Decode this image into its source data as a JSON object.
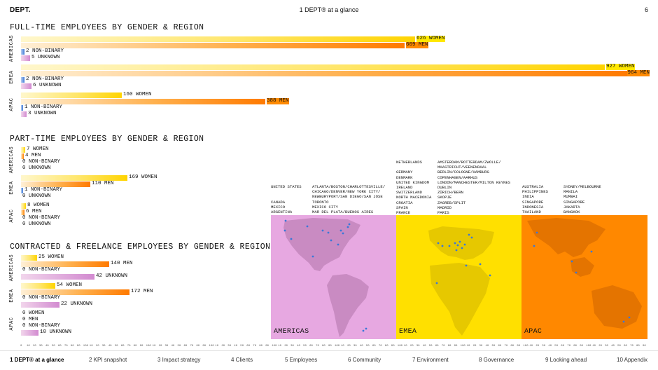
{
  "header": {
    "logo": "DEPT.",
    "title": "1 DEPT® at a glance",
    "page": "6"
  },
  "sections": {
    "fulltime": {
      "title": "FULL-TIME EMPLOYEES BY GENDER & REGION",
      "regions": [
        {
          "name": "AMERICAS",
          "women": "626 WOMEN",
          "men": "609 MEN",
          "nb": "2 NON-BINARY",
          "unk": "5 UNKNOWN"
        },
        {
          "name": "EMEA",
          "women": "927 WOMEN",
          "men": "964 MEN",
          "nb": "2 NON-BINARY",
          "unk": "6 UNKNOWN"
        },
        {
          "name": "APAC",
          "women": "160 WOMEN",
          "men": "388 MEN",
          "nb": "1 NON-BINARY",
          "unk": "3 UNKNOWN"
        }
      ],
      "values": {
        "women": [
          626,
          927,
          160
        ],
        "men": [
          609,
          964,
          388
        ],
        "nb": [
          2,
          2,
          1
        ],
        "unk": [
          5,
          6,
          3
        ]
      }
    },
    "parttime": {
      "title": "PART-TIME EMPLOYEES BY GENDER & REGION",
      "regions": [
        {
          "name": "AMERICAS",
          "women": "7 WOMEN",
          "men": "4 MEN",
          "nb": "0 NON-BINARY",
          "unk": "0 UNKNOWN"
        },
        {
          "name": "EMEA",
          "women": "169 WOMEN",
          "men": "110 MEN",
          "nb": "1 NON-BINARY",
          "unk": "0 UNKNOWN"
        },
        {
          "name": "APAC",
          "women": "8 WOMEN",
          "men": "6 MEN",
          "nb": "0 NON-BINARY",
          "unk": "0 UNKNOWN"
        }
      ],
      "values": {
        "women": [
          7,
          169,
          8
        ],
        "men": [
          4,
          110,
          6
        ],
        "nb": [
          0,
          1,
          0
        ],
        "unk": [
          0,
          0,
          0
        ]
      }
    },
    "contracted": {
      "title": "CONTRACTED & FREELANCE EMPLOYEES BY GENDER & REGION",
      "regions": [
        {
          "name": "AMERICAS",
          "women": "25 WOMEN",
          "men": "140 MEN",
          "nb": "0 NON-BINARY",
          "unk": "42 UNKNOWN"
        },
        {
          "name": "EMEA",
          "women": "54 WOMEN",
          "men": "172 MEN",
          "nb": "0 NON-BINARY",
          "unk": "22 UNKNOWN"
        },
        {
          "name": "APAC",
          "women": "0 WOMEN",
          "men": "0 MEN",
          "nb": "0 NON-BINARY",
          "unk": "10 UNKNOWN"
        }
      ],
      "values": {
        "women": [
          25,
          54,
          0
        ],
        "men": [
          140,
          172,
          0
        ],
        "nb": [
          0,
          0,
          0
        ],
        "unk": [
          42,
          22,
          10
        ]
      }
    }
  },
  "offices": {
    "americas": {
      "countries": [
        "UNITED STATES",
        "",
        "",
        "CANADA",
        "MEXICO",
        "ARGENTINA"
      ],
      "cities": [
        "ATLANTA/BOSTON/CHARLOTTESVILLE/",
        "CHICAGO/DENVER/NEW YORK CITY/",
        "NEWBURYPORT/SAN DIEGO/SAN JOSE",
        "TORONTO",
        "MEXICO CITY",
        "MAR DEL PLATA/BUENOS AIRES"
      ],
      "map_label": "AMERICAS",
      "color": "#e7a8e1"
    },
    "emea": {
      "countries": [
        "NETHERLANDS",
        "",
        "GERMANY",
        "DENMARK",
        "UNITED KINGDOM",
        "IRELAND",
        "SWITZERLAND",
        "NORTH MACEDONIA",
        "CROATIA",
        "SPAIN",
        "FRANCE"
      ],
      "cities": [
        "AMSTERDAM/ROTTERDAM/ZWOLLE/",
        "MAASTRICHT/VEENENDAAL",
        "BERLIN/COLOGNE/HAMBURG",
        "COPENHAGEN/AARHUS",
        "LONDON/MANCHESTER/MILTON KEYNES",
        "DUBLIN",
        "ZÜRICH/BERN",
        "SKOPJE",
        "ZAGREB/SPLIT",
        "MADRID",
        "PARIS"
      ],
      "map_label": "EMEA",
      "color": "#ffe000"
    },
    "apac": {
      "countries": [
        "AUSTRALIA",
        "PHILIPPINES",
        "INDIA",
        "SINGAPORE",
        "INDONESIA",
        "THAILAND"
      ],
      "cities": [
        "SYDNEY/MELBOURNE",
        "MANILA",
        "MUMBAI",
        "SINGAPORE",
        "JAKARTA",
        "BANGKOK"
      ],
      "map_label": "APAC",
      "color": "#ff8800"
    }
  },
  "ruler_labels": [
    "0",
    "10",
    "20",
    "30",
    "40",
    "50",
    "60",
    "70",
    "80",
    "90",
    "100",
    "10",
    "20",
    "30",
    "40",
    "50",
    "60",
    "70",
    "80",
    "90",
    "100",
    "10",
    "20",
    "30",
    "40",
    "50",
    "60",
    "70",
    "80",
    "90",
    "100",
    "10",
    "20",
    "30",
    "40",
    "50",
    "60",
    "70",
    "80",
    "90",
    "100",
    "10",
    "20",
    "30",
    "40",
    "50",
    "60",
    "70",
    "80",
    "90",
    "100",
    "10",
    "20",
    "30",
    "40",
    "50",
    "60",
    "70",
    "80",
    "90",
    "100",
    "10",
    "20",
    "30",
    "40",
    "50",
    "60",
    "70",
    "80",
    "90",
    "100",
    "10",
    "20",
    "30",
    "40",
    "50",
    "60",
    "70",
    "80",
    "90",
    "100",
    "10",
    "20",
    "30",
    "40",
    "50",
    "60",
    "70",
    "80",
    "90",
    "100",
    "10",
    "20",
    "30",
    "40",
    "50",
    "60",
    "70",
    "80",
    "90"
  ],
  "nav": [
    "1  DEPT® at a glance",
    "2  KPI snapshot",
    "3  Impact strategy",
    "4  Clients",
    "5  Employees",
    "6  Community",
    "7  Environment",
    "8  Governance",
    "9  Looking ahead",
    "10  Appendix"
  ],
  "colors": {
    "women": "#ffd400",
    "men": "#ff7a00",
    "non_binary": "#3b78d8",
    "unknown": "#d28ad0"
  }
}
